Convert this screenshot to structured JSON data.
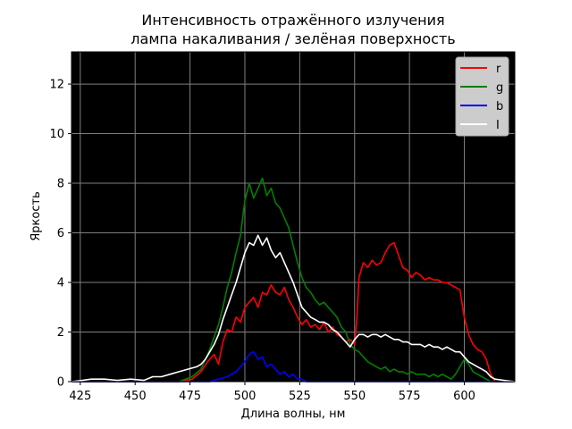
{
  "chart_data": {
    "type": "line",
    "title_line1": "Интенсивность отражённого излучения",
    "title_line2": "лампа накаливания / зелёная поверхность",
    "xlabel": "Длина волны, нм",
    "ylabel": "Яркость",
    "xlim": [
      421,
      623
    ],
    "ylim": [
      0,
      13.3
    ],
    "x_ticks": [
      425,
      450,
      475,
      500,
      525,
      550,
      575,
      600
    ],
    "y_ticks": [
      0,
      2,
      4,
      6,
      8,
      10,
      12
    ],
    "grid": true,
    "background": "#000000",
    "legend_position": "top-right",
    "series": [
      {
        "name": "r",
        "color": "#ff0000",
        "points": [
          [
            421,
            0.0
          ],
          [
            470,
            0.0
          ],
          [
            476,
            0.1
          ],
          [
            480,
            0.4
          ],
          [
            483,
            0.8
          ],
          [
            486,
            1.1
          ],
          [
            488,
            0.7
          ],
          [
            490,
            1.6
          ],
          [
            492,
            2.1
          ],
          [
            494,
            2.0
          ],
          [
            496,
            2.6
          ],
          [
            498,
            2.4
          ],
          [
            500,
            3.0
          ],
          [
            502,
            3.2
          ],
          [
            504,
            3.4
          ],
          [
            506,
            3.0
          ],
          [
            508,
            3.6
          ],
          [
            510,
            3.5
          ],
          [
            512,
            3.9
          ],
          [
            514,
            3.6
          ],
          [
            516,
            3.5
          ],
          [
            518,
            3.8
          ],
          [
            520,
            3.3
          ],
          [
            522,
            3.0
          ],
          [
            524,
            2.6
          ],
          [
            526,
            2.3
          ],
          [
            528,
            2.5
          ],
          [
            530,
            2.2
          ],
          [
            532,
            2.3
          ],
          [
            534,
            2.1
          ],
          [
            536,
            2.4
          ],
          [
            538,
            2.0
          ],
          [
            540,
            2.2
          ],
          [
            542,
            1.9
          ],
          [
            544,
            1.8
          ],
          [
            546,
            1.6
          ],
          [
            548,
            1.7
          ],
          [
            550,
            1.5
          ],
          [
            551,
            2.5
          ],
          [
            552,
            4.2
          ],
          [
            554,
            4.8
          ],
          [
            556,
            4.6
          ],
          [
            558,
            4.9
          ],
          [
            560,
            4.7
          ],
          [
            562,
            4.8
          ],
          [
            564,
            5.2
          ],
          [
            566,
            5.5
          ],
          [
            568,
            5.6
          ],
          [
            570,
            5.1
          ],
          [
            572,
            4.6
          ],
          [
            574,
            4.5
          ],
          [
            576,
            4.2
          ],
          [
            578,
            4.4
          ],
          [
            580,
            4.3
          ],
          [
            582,
            4.1
          ],
          [
            584,
            4.2
          ],
          [
            586,
            4.1
          ],
          [
            588,
            4.1
          ],
          [
            590,
            4.0
          ],
          [
            592,
            4.0
          ],
          [
            594,
            3.9
          ],
          [
            596,
            3.8
          ],
          [
            598,
            3.7
          ],
          [
            600,
            2.6
          ],
          [
            602,
            1.9
          ],
          [
            604,
            1.5
          ],
          [
            606,
            1.3
          ],
          [
            608,
            1.2
          ],
          [
            610,
            0.9
          ],
          [
            612,
            0.3
          ],
          [
            614,
            0.0
          ],
          [
            623,
            0.0
          ]
        ]
      },
      {
        "name": "g",
        "color": "#008000",
        "points": [
          [
            421,
            0.0
          ],
          [
            470,
            0.0
          ],
          [
            476,
            0.2
          ],
          [
            480,
            0.5
          ],
          [
            484,
            1.3
          ],
          [
            488,
            2.3
          ],
          [
            490,
            3.0
          ],
          [
            492,
            3.8
          ],
          [
            494,
            4.4
          ],
          [
            496,
            5.2
          ],
          [
            498,
            5.9
          ],
          [
            500,
            7.3
          ],
          [
            502,
            8.0
          ],
          [
            504,
            7.4
          ],
          [
            506,
            7.8
          ],
          [
            508,
            8.2
          ],
          [
            510,
            7.5
          ],
          [
            512,
            7.8
          ],
          [
            514,
            7.2
          ],
          [
            516,
            7.0
          ],
          [
            518,
            6.6
          ],
          [
            520,
            6.2
          ],
          [
            522,
            5.5
          ],
          [
            524,
            4.8
          ],
          [
            526,
            4.2
          ],
          [
            528,
            3.8
          ],
          [
            530,
            3.6
          ],
          [
            532,
            3.3
          ],
          [
            534,
            3.1
          ],
          [
            536,
            3.2
          ],
          [
            538,
            3.0
          ],
          [
            540,
            2.8
          ],
          [
            542,
            2.6
          ],
          [
            544,
            2.2
          ],
          [
            546,
            2.0
          ],
          [
            548,
            1.5
          ],
          [
            550,
            1.3
          ],
          [
            552,
            1.2
          ],
          [
            554,
            1.0
          ],
          [
            556,
            0.8
          ],
          [
            558,
            0.7
          ],
          [
            560,
            0.6
          ],
          [
            562,
            0.5
          ],
          [
            564,
            0.6
          ],
          [
            566,
            0.4
          ],
          [
            568,
            0.5
          ],
          [
            570,
            0.4
          ],
          [
            572,
            0.4
          ],
          [
            574,
            0.3
          ],
          [
            576,
            0.4
          ],
          [
            578,
            0.3
          ],
          [
            580,
            0.3
          ],
          [
            582,
            0.3
          ],
          [
            584,
            0.2
          ],
          [
            586,
            0.3
          ],
          [
            588,
            0.2
          ],
          [
            590,
            0.3
          ],
          [
            592,
            0.2
          ],
          [
            594,
            0.1
          ],
          [
            596,
            0.3
          ],
          [
            598,
            0.6
          ],
          [
            600,
            0.9
          ],
          [
            602,
            0.7
          ],
          [
            604,
            0.4
          ],
          [
            606,
            0.3
          ],
          [
            608,
            0.2
          ],
          [
            610,
            0.1
          ],
          [
            612,
            0.0
          ],
          [
            623,
            0.0
          ]
        ]
      },
      {
        "name": "b",
        "color": "#0000ff",
        "points": [
          [
            421,
            0.0
          ],
          [
            484,
            0.0
          ],
          [
            488,
            0.1
          ],
          [
            492,
            0.2
          ],
          [
            496,
            0.4
          ],
          [
            498,
            0.6
          ],
          [
            500,
            0.8
          ],
          [
            502,
            1.1
          ],
          [
            504,
            1.2
          ],
          [
            506,
            0.9
          ],
          [
            508,
            1.0
          ],
          [
            510,
            0.6
          ],
          [
            512,
            0.7
          ],
          [
            514,
            0.5
          ],
          [
            516,
            0.3
          ],
          [
            518,
            0.4
          ],
          [
            520,
            0.2
          ],
          [
            522,
            0.3
          ],
          [
            524,
            0.1
          ],
          [
            526,
            0.1
          ],
          [
            528,
            0.0
          ],
          [
            623,
            0.0
          ]
        ]
      },
      {
        "name": "I",
        "color": "#ffffff",
        "points": [
          [
            421,
            0.0
          ],
          [
            426,
            0.05
          ],
          [
            430,
            0.1
          ],
          [
            436,
            0.1
          ],
          [
            442,
            0.05
          ],
          [
            448,
            0.1
          ],
          [
            454,
            0.05
          ],
          [
            458,
            0.2
          ],
          [
            462,
            0.2
          ],
          [
            466,
            0.3
          ],
          [
            470,
            0.4
          ],
          [
            474,
            0.5
          ],
          [
            478,
            0.6
          ],
          [
            480,
            0.7
          ],
          [
            482,
            0.9
          ],
          [
            484,
            1.2
          ],
          [
            486,
            1.5
          ],
          [
            488,
            1.9
          ],
          [
            490,
            2.5
          ],
          [
            492,
            3.0
          ],
          [
            494,
            3.5
          ],
          [
            496,
            4.0
          ],
          [
            498,
            4.6
          ],
          [
            500,
            5.2
          ],
          [
            502,
            5.6
          ],
          [
            504,
            5.5
          ],
          [
            506,
            5.9
          ],
          [
            508,
            5.5
          ],
          [
            510,
            5.8
          ],
          [
            512,
            5.3
          ],
          [
            514,
            5.0
          ],
          [
            516,
            5.2
          ],
          [
            518,
            4.8
          ],
          [
            520,
            4.4
          ],
          [
            522,
            4.0
          ],
          [
            524,
            3.5
          ],
          [
            526,
            3.0
          ],
          [
            528,
            2.8
          ],
          [
            530,
            2.6
          ],
          [
            532,
            2.5
          ],
          [
            534,
            2.4
          ],
          [
            536,
            2.4
          ],
          [
            538,
            2.3
          ],
          [
            540,
            2.1
          ],
          [
            542,
            2.0
          ],
          [
            544,
            1.8
          ],
          [
            546,
            1.6
          ],
          [
            548,
            1.4
          ],
          [
            550,
            1.7
          ],
          [
            552,
            1.9
          ],
          [
            554,
            1.9
          ],
          [
            556,
            1.8
          ],
          [
            558,
            1.9
          ],
          [
            560,
            1.9
          ],
          [
            562,
            1.8
          ],
          [
            564,
            1.9
          ],
          [
            566,
            1.8
          ],
          [
            568,
            1.7
          ],
          [
            570,
            1.7
          ],
          [
            572,
            1.6
          ],
          [
            574,
            1.6
          ],
          [
            576,
            1.5
          ],
          [
            578,
            1.5
          ],
          [
            580,
            1.5
          ],
          [
            582,
            1.4
          ],
          [
            584,
            1.5
          ],
          [
            586,
            1.4
          ],
          [
            588,
            1.4
          ],
          [
            590,
            1.3
          ],
          [
            592,
            1.4
          ],
          [
            594,
            1.3
          ],
          [
            596,
            1.2
          ],
          [
            598,
            1.2
          ],
          [
            600,
            1.0
          ],
          [
            602,
            0.8
          ],
          [
            604,
            0.7
          ],
          [
            606,
            0.6
          ],
          [
            608,
            0.5
          ],
          [
            610,
            0.4
          ],
          [
            612,
            0.2
          ],
          [
            614,
            0.1
          ],
          [
            618,
            0.05
          ],
          [
            623,
            0.0
          ]
        ]
      }
    ]
  }
}
